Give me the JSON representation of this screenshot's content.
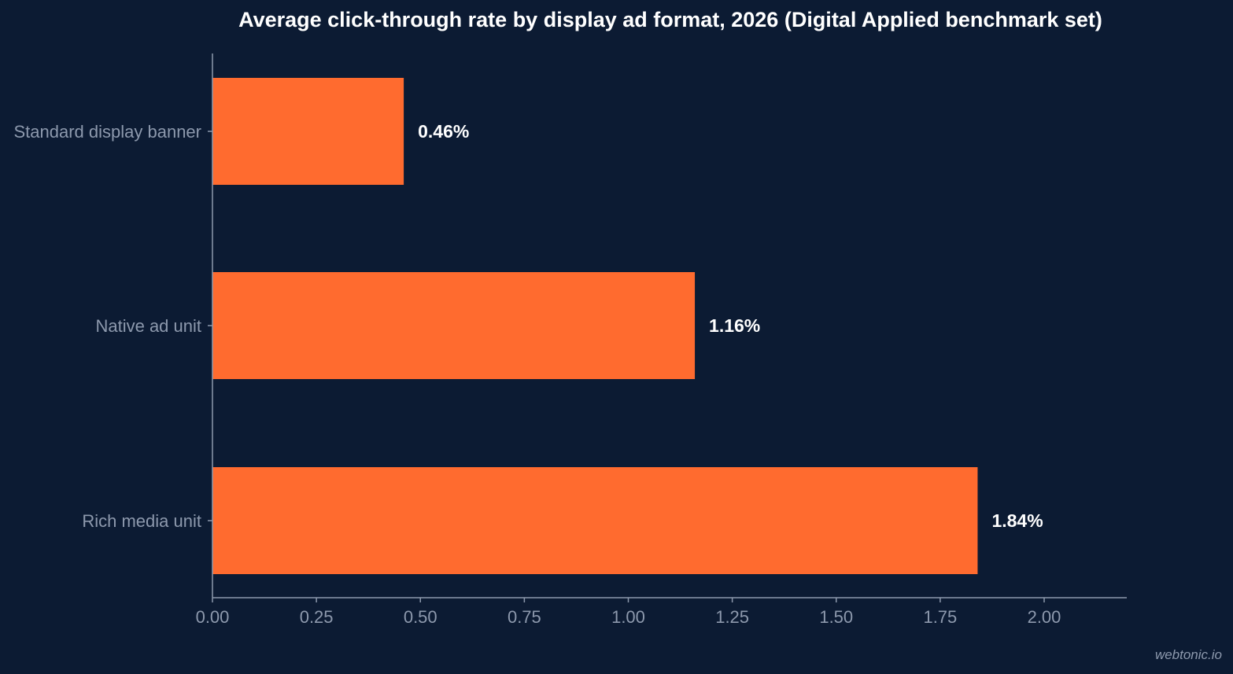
{
  "chart_data": {
    "type": "bar",
    "orientation": "horizontal",
    "title": "Average click-through rate by display ad format, 2026 (Digital Applied benchmark set)",
    "xlabel": "",
    "ylabel": "",
    "categories": [
      "Standard display banner",
      "Native ad unit",
      "Rich media unit"
    ],
    "values": [
      0.46,
      1.16,
      1.84
    ],
    "data_labels": [
      "0.46%",
      "1.16%",
      "1.84%"
    ],
    "xlim": [
      0,
      2.2
    ],
    "xticks": [
      0,
      0.25,
      0.5,
      0.75,
      1.0,
      1.25,
      1.5,
      1.75,
      2.0
    ],
    "xtick_labels": [
      "0.00",
      "0.25",
      "0.50",
      "0.75",
      "1.00",
      "1.25",
      "1.50",
      "1.75",
      "2.00"
    ],
    "grid": false,
    "legend": "none",
    "colors": {
      "background": "#0c1b33",
      "bar": "#ff6b2f",
      "axis": "#8d99ad",
      "tick_text": "#8d99ad",
      "label_text": "#ffffff"
    }
  },
  "watermark": "webtonic.io"
}
